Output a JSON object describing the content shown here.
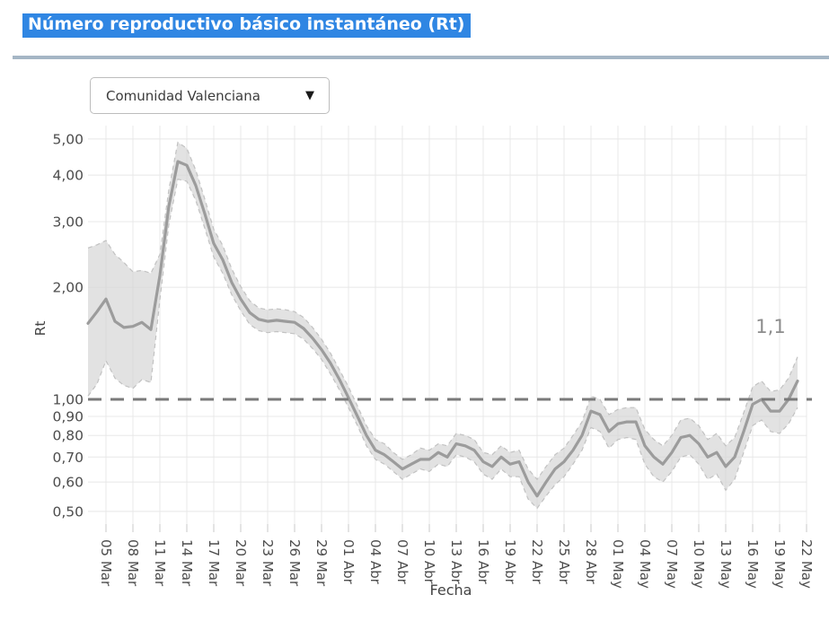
{
  "page": {
    "title": "Número reproductivo básico instantáneo (Rt)",
    "title_bg": "#2f86e3",
    "divider_color": "#a5b6c5"
  },
  "region_selector": {
    "value": "Comunidad Valenciana",
    "dropdown_icon": "▼"
  },
  "chart_data": {
    "type": "line",
    "xlabel": "Fecha",
    "ylabel": "Rt",
    "yscale": "log",
    "ylim": [
      0.45,
      5.3
    ],
    "grid": true,
    "legend": "none",
    "annotation": {
      "text": "1,1",
      "anchor_date": "18 May",
      "value": 1.56
    },
    "reference_line": {
      "value": 1.0,
      "style": "dashed",
      "color": "#7a7a7a"
    },
    "colors": {
      "line": "#9c9c9c",
      "band_fill": "#d6d6d6",
      "band_edge": "#c2c2c2",
      "grid": "#e8e8e8",
      "tick_text": "#4d4d4d",
      "axis_title": "#444444",
      "annotation": "#8c8c8c"
    },
    "y_ticks": [
      {
        "value": 5.0,
        "label": "5,00"
      },
      {
        "value": 4.0,
        "label": "4,00"
      },
      {
        "value": 3.0,
        "label": "3,00"
      },
      {
        "value": 2.0,
        "label": "2,00"
      },
      {
        "value": 1.0,
        "label": "1,00"
      },
      {
        "value": 0.9,
        "label": "0,90"
      },
      {
        "value": 0.8,
        "label": "0,80"
      },
      {
        "value": 0.7,
        "label": "0,70"
      },
      {
        "value": 0.6,
        "label": "0,60"
      },
      {
        "value": 0.5,
        "label": "0,50"
      }
    ],
    "x_ticks": [
      "05 Mar",
      "08 Mar",
      "11 Mar",
      "14 Mar",
      "17 Mar",
      "20 Mar",
      "23 Mar",
      "26 Mar",
      "29 Mar",
      "01 Abr",
      "04 Abr",
      "07 Abr",
      "10 Abr",
      "13 Abr",
      "16 Abr",
      "19 Abr",
      "22 Abr",
      "25 Abr",
      "28 Abr",
      "01 May",
      "04 May",
      "07 May",
      "10 May",
      "13 May",
      "16 May",
      "19 May",
      "22 May"
    ],
    "dates": [
      "03 Mar",
      "04 Mar",
      "05 Mar",
      "06 Mar",
      "07 Mar",
      "08 Mar",
      "09 Mar",
      "10 Mar",
      "11 Mar",
      "12 Mar",
      "13 Mar",
      "14 Mar",
      "15 Mar",
      "16 Mar",
      "17 Mar",
      "18 Mar",
      "19 Mar",
      "20 Mar",
      "21 Mar",
      "22 Mar",
      "23 Mar",
      "24 Mar",
      "25 Mar",
      "26 Mar",
      "27 Mar",
      "28 Mar",
      "29 Mar",
      "30 Mar",
      "31 Mar",
      "01 Abr",
      "02 Abr",
      "03 Abr",
      "04 Abr",
      "05 Abr",
      "06 Abr",
      "07 Abr",
      "08 Abr",
      "09 Abr",
      "10 Abr",
      "11 Abr",
      "12 Abr",
      "13 Abr",
      "14 Abr",
      "15 Abr",
      "16 Abr",
      "17 Abr",
      "18 Abr",
      "19 Abr",
      "20 Abr",
      "21 Abr",
      "22 Abr",
      "23 Abr",
      "24 Abr",
      "25 Abr",
      "26 Abr",
      "27 Abr",
      "28 Abr",
      "29 Abr",
      "30 Abr",
      "01 May",
      "02 May",
      "03 May",
      "04 May",
      "05 May",
      "06 May",
      "07 May",
      "08 May",
      "09 May",
      "10 May",
      "11 May",
      "12 May",
      "13 May",
      "14 May",
      "15 May",
      "16 May",
      "17 May",
      "18 May",
      "19 May",
      "20 May",
      "21 May"
    ],
    "series": [
      {
        "name": "Rt",
        "values": [
          1.6,
          1.72,
          1.86,
          1.62,
          1.56,
          1.57,
          1.61,
          1.54,
          2.15,
          3.3,
          4.35,
          4.25,
          3.75,
          3.15,
          2.62,
          2.37,
          2.06,
          1.86,
          1.71,
          1.64,
          1.62,
          1.63,
          1.62,
          1.61,
          1.55,
          1.46,
          1.36,
          1.25,
          1.13,
          1.01,
          0.9,
          0.8,
          0.73,
          0.71,
          0.68,
          0.65,
          0.67,
          0.69,
          0.69,
          0.72,
          0.7,
          0.76,
          0.75,
          0.73,
          0.68,
          0.66,
          0.7,
          0.67,
          0.68,
          0.6,
          0.55,
          0.6,
          0.65,
          0.68,
          0.73,
          0.8,
          0.93,
          0.91,
          0.82,
          0.86,
          0.87,
          0.87,
          0.75,
          0.7,
          0.67,
          0.72,
          0.79,
          0.8,
          0.76,
          0.7,
          0.72,
          0.66,
          0.7,
          0.82,
          0.97,
          1.0,
          0.93,
          0.93,
          1.0,
          1.12
        ]
      }
    ],
    "band": {
      "name": "confidence-interval",
      "lower": [
        1.02,
        1.1,
        1.27,
        1.14,
        1.09,
        1.07,
        1.13,
        1.11,
        1.85,
        2.95,
        3.9,
        3.85,
        3.42,
        2.88,
        2.41,
        2.18,
        1.91,
        1.73,
        1.59,
        1.53,
        1.51,
        1.52,
        1.51,
        1.5,
        1.45,
        1.37,
        1.28,
        1.17,
        1.06,
        0.95,
        0.85,
        0.75,
        0.69,
        0.67,
        0.64,
        0.61,
        0.63,
        0.65,
        0.64,
        0.67,
        0.66,
        0.71,
        0.7,
        0.68,
        0.63,
        0.61,
        0.65,
        0.62,
        0.62,
        0.54,
        0.51,
        0.55,
        0.59,
        0.62,
        0.67,
        0.73,
        0.84,
        0.82,
        0.74,
        0.78,
        0.79,
        0.78,
        0.67,
        0.62,
        0.6,
        0.64,
        0.7,
        0.71,
        0.67,
        0.61,
        0.63,
        0.57,
        0.61,
        0.72,
        0.85,
        0.88,
        0.82,
        0.81,
        0.86,
        0.95
      ],
      "upper": [
        2.55,
        2.6,
        2.67,
        2.45,
        2.33,
        2.2,
        2.22,
        2.18,
        2.45,
        3.65,
        4.9,
        4.72,
        4.12,
        3.45,
        2.86,
        2.59,
        2.24,
        2.01,
        1.84,
        1.76,
        1.74,
        1.75,
        1.74,
        1.72,
        1.66,
        1.56,
        1.45,
        1.33,
        1.2,
        1.08,
        0.96,
        0.85,
        0.78,
        0.76,
        0.72,
        0.69,
        0.71,
        0.74,
        0.73,
        0.76,
        0.75,
        0.81,
        0.8,
        0.78,
        0.72,
        0.71,
        0.75,
        0.72,
        0.73,
        0.65,
        0.61,
        0.66,
        0.71,
        0.74,
        0.8,
        0.87,
        1.02,
        1.0,
        0.91,
        0.94,
        0.95,
        0.95,
        0.83,
        0.78,
        0.75,
        0.8,
        0.88,
        0.89,
        0.85,
        0.78,
        0.81,
        0.75,
        0.79,
        0.92,
        1.08,
        1.12,
        1.05,
        1.06,
        1.14,
        1.3
      ]
    }
  }
}
